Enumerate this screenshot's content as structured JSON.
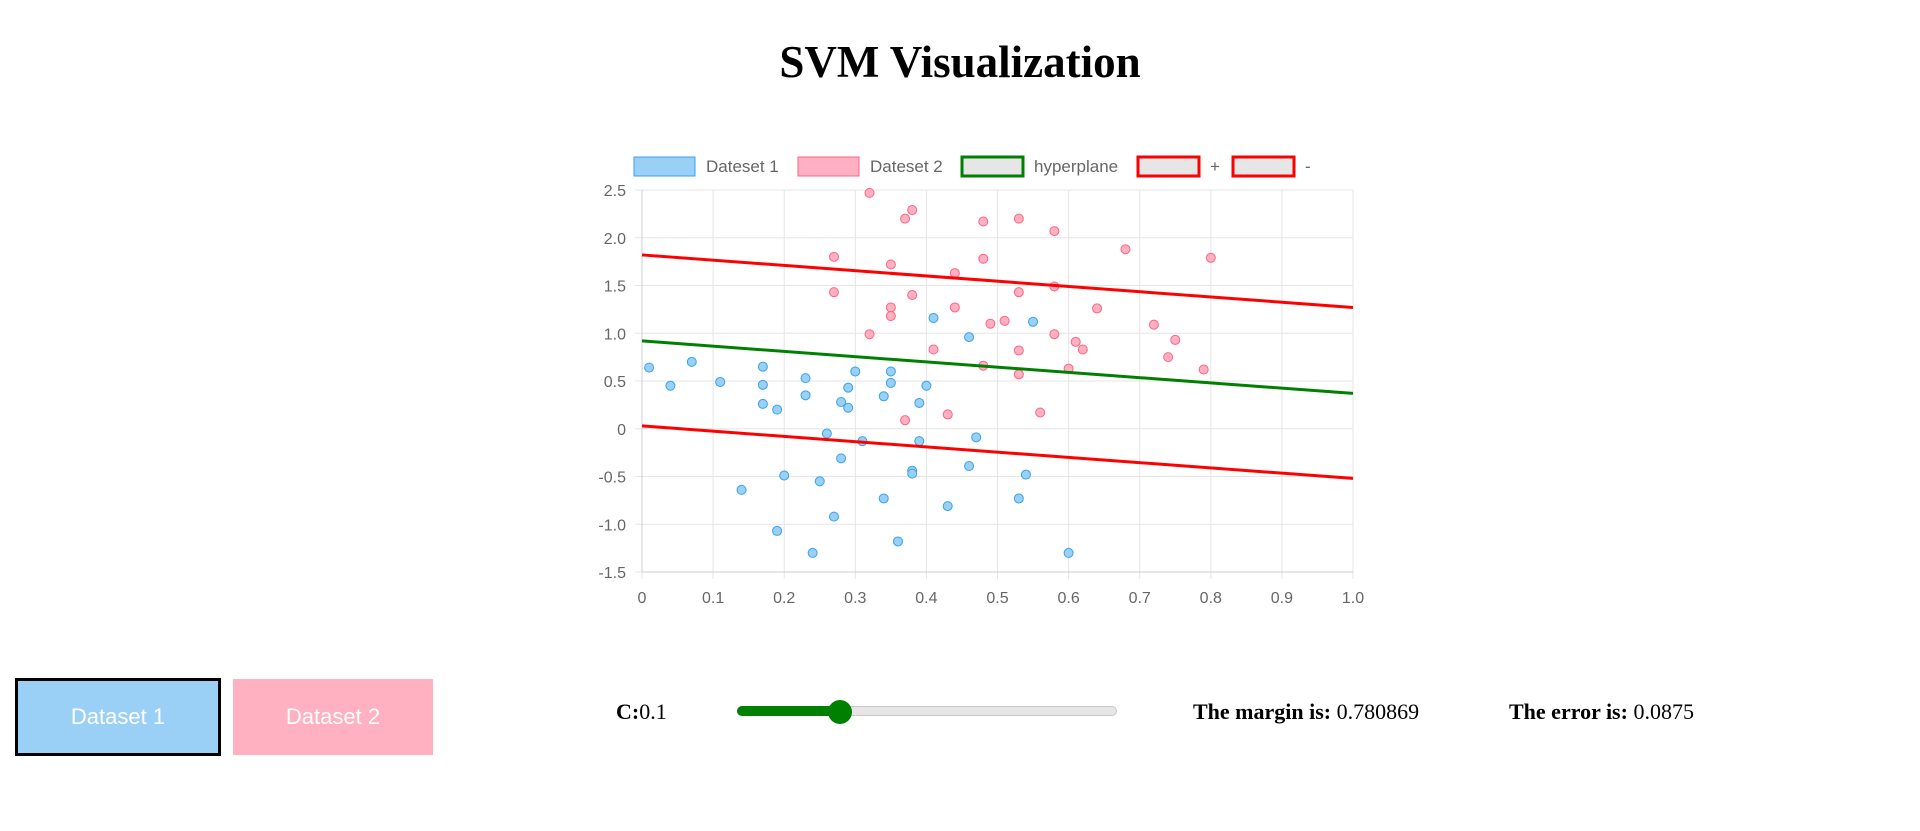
{
  "page": {
    "title": "SVM Visualization"
  },
  "colors": {
    "dataset1_fill": "#9ad0f5",
    "dataset1_stroke": "#36a2eb",
    "dataset2_fill": "#ffb1c1",
    "dataset2_stroke": "#ff6384",
    "hyperplane": "#008000",
    "margin_line": "#ff0000",
    "legend_box_fill": "#e6e6e6",
    "grid": "#e5e5e5",
    "accent": "#008000"
  },
  "chart_data": {
    "type": "scatter",
    "xlim": [
      0,
      1.0
    ],
    "ylim": [
      -1.5,
      2.5
    ],
    "xticks": [
      "0",
      "0.1",
      "0.2",
      "0.3",
      "0.4",
      "0.5",
      "0.6",
      "0.7",
      "0.8",
      "0.9",
      "1.0"
    ],
    "yticks": [
      "2.5",
      "2.0",
      "1.5",
      "1.0",
      "0.5",
      "0",
      "-0.5",
      "-1.0",
      "-1.5"
    ],
    "grid": true,
    "legend_position": "top-center",
    "series": [
      {
        "name": "Dateset 1",
        "kind": "points",
        "points": [
          [
            0.01,
            0.64
          ],
          [
            0.04,
            0.45
          ],
          [
            0.07,
            0.7
          ],
          [
            0.11,
            0.49
          ],
          [
            0.14,
            -0.64
          ],
          [
            0.17,
            0.46
          ],
          [
            0.17,
            0.65
          ],
          [
            0.17,
            0.26
          ],
          [
            0.19,
            -1.07
          ],
          [
            0.19,
            0.2
          ],
          [
            0.2,
            -0.49
          ],
          [
            0.23,
            0.53
          ],
          [
            0.23,
            0.35
          ],
          [
            0.24,
            -1.3
          ],
          [
            0.25,
            -0.55
          ],
          [
            0.26,
            -0.05
          ],
          [
            0.27,
            -0.92
          ],
          [
            0.28,
            -0.31
          ],
          [
            0.28,
            0.28
          ],
          [
            0.29,
            0.22
          ],
          [
            0.29,
            0.43
          ],
          [
            0.3,
            0.6
          ],
          [
            0.31,
            -0.13
          ],
          [
            0.34,
            0.34
          ],
          [
            0.34,
            -0.73
          ],
          [
            0.35,
            0.6
          ],
          [
            0.35,
            0.48
          ],
          [
            0.36,
            -1.18
          ],
          [
            0.38,
            -0.44
          ],
          [
            0.38,
            -0.47
          ],
          [
            0.39,
            -0.13
          ],
          [
            0.39,
            0.27
          ],
          [
            0.4,
            0.45
          ],
          [
            0.41,
            1.16
          ],
          [
            0.43,
            -0.81
          ],
          [
            0.46,
            0.96
          ],
          [
            0.46,
            -0.39
          ],
          [
            0.47,
            -0.09
          ],
          [
            0.53,
            -0.73
          ],
          [
            0.54,
            -0.48
          ],
          [
            0.55,
            1.12
          ],
          [
            0.6,
            -1.3
          ]
        ]
      },
      {
        "name": "Dateset 2",
        "kind": "points",
        "points": [
          [
            0.27,
            1.8
          ],
          [
            0.27,
            1.43
          ],
          [
            0.32,
            2.47
          ],
          [
            0.32,
            0.99
          ],
          [
            0.35,
            1.27
          ],
          [
            0.35,
            1.18
          ],
          [
            0.35,
            1.72
          ],
          [
            0.37,
            2.2
          ],
          [
            0.37,
            0.09
          ],
          [
            0.38,
            2.29
          ],
          [
            0.38,
            1.4
          ],
          [
            0.41,
            0.83
          ],
          [
            0.43,
            0.15
          ],
          [
            0.44,
            1.63
          ],
          [
            0.44,
            1.27
          ],
          [
            0.48,
            2.17
          ],
          [
            0.48,
            1.78
          ],
          [
            0.48,
            0.66
          ],
          [
            0.49,
            1.1
          ],
          [
            0.51,
            1.13
          ],
          [
            0.53,
            2.2
          ],
          [
            0.53,
            1.43
          ],
          [
            0.53,
            0.82
          ],
          [
            0.53,
            0.57
          ],
          [
            0.56,
            0.17
          ],
          [
            0.58,
            2.07
          ],
          [
            0.58,
            1.49
          ],
          [
            0.58,
            0.99
          ],
          [
            0.6,
            0.63
          ],
          [
            0.61,
            0.91
          ],
          [
            0.62,
            0.83
          ],
          [
            0.64,
            1.26
          ],
          [
            0.68,
            1.88
          ],
          [
            0.72,
            1.09
          ],
          [
            0.74,
            0.75
          ],
          [
            0.75,
            0.93
          ],
          [
            0.79,
            0.62
          ],
          [
            0.8,
            1.79
          ]
        ]
      },
      {
        "name": "hyperplane",
        "kind": "line",
        "points": [
          [
            0,
            0.92
          ],
          [
            1.0,
            0.37
          ]
        ]
      },
      {
        "name": "+",
        "kind": "line",
        "points": [
          [
            0,
            1.82
          ],
          [
            1.0,
            1.27
          ]
        ]
      },
      {
        "name": "-",
        "kind": "line",
        "points": [
          [
            0,
            0.03
          ],
          [
            1.0,
            -0.52
          ]
        ]
      }
    ]
  },
  "controls": {
    "dataset1_button": "Dataset 1",
    "dataset2_button": "Dataset 2",
    "c_label": "C:",
    "c_value": "0.1",
    "c_slider_fraction": 0.27,
    "margin_label": "The margin is:",
    "margin_value": "0.780869",
    "error_label": "The error is:",
    "error_value": "0.0875"
  }
}
